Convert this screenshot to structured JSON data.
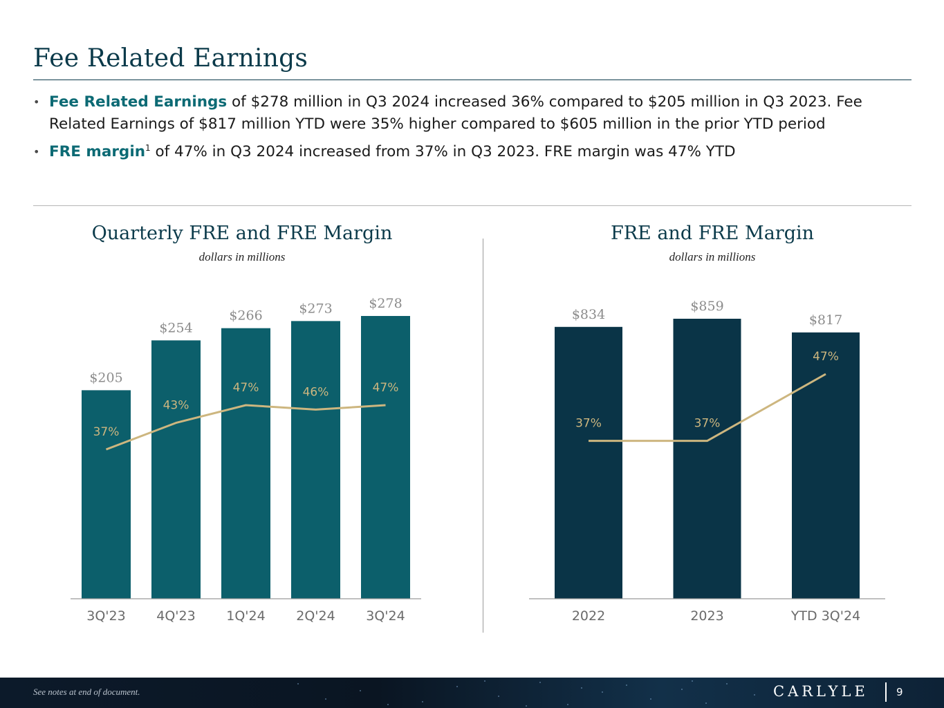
{
  "header": {
    "title": "Fee Related Earnings"
  },
  "bullets": [
    {
      "highlight": "Fee Related Earnings",
      "text": " of $278 million in Q3 2024 increased 36% compared to $205 million in Q3 2023. Fee Related Earnings of $817 million YTD were 35% higher compared to $605 million in the prior YTD period",
      "sup": ""
    },
    {
      "highlight": "FRE margin",
      "sup": "1",
      "text": " of 47% in Q3 2024 increased from 37% in Q3 2023. FRE margin was 47% YTD"
    }
  ],
  "colors": {
    "title": "#0b3a4a",
    "highlight": "#0c6a74",
    "bar_quarterly": "#0c5f6b",
    "bar_annual": "#0a3447",
    "line": "#cdb67f",
    "line_label": "#cdb67f",
    "value_label": "#8c8c8c",
    "axis": "#9a9a9a"
  },
  "chart_data": [
    {
      "type": "bar",
      "title": "Quarterly FRE and FRE Margin",
      "subtitle": "dollars in millions",
      "categories": [
        "3Q'23",
        "4Q'23",
        "1Q'24",
        "2Q'24",
        "3Q'24"
      ],
      "series": [
        {
          "name": "FRE",
          "type": "bar",
          "values": [
            205,
            254,
            266,
            273,
            278
          ],
          "labels": [
            "$205",
            "$254",
            "$266",
            "$273",
            "$278"
          ]
        },
        {
          "name": "FRE Margin",
          "type": "line",
          "values": [
            37,
            43,
            47,
            46,
            47
          ],
          "labels": [
            "37%",
            "43%",
            "47%",
            "46%",
            "47%"
          ]
        }
      ],
      "ylim": [
        0,
        278
      ],
      "margin_scale": [
        27,
        47
      ],
      "xlabel": "",
      "ylabel": ""
    },
    {
      "type": "bar",
      "title": "FRE and FRE Margin",
      "subtitle": "dollars in millions",
      "categories": [
        "2022",
        "2023",
        "YTD 3Q'24"
      ],
      "series": [
        {
          "name": "FRE",
          "type": "bar",
          "values": [
            834,
            859,
            817
          ],
          "labels": [
            "$834",
            "$859",
            "$817"
          ]
        },
        {
          "name": "FRE Margin",
          "type": "line",
          "values": [
            37,
            37,
            47
          ],
          "labels": [
            "37%",
            "37%",
            "47%"
          ]
        }
      ],
      "ylim": [
        0,
        859
      ],
      "margin_scale": [
        32,
        47
      ],
      "xlabel": "",
      "ylabel": ""
    }
  ],
  "footer": {
    "note": "See notes at end of document.",
    "logo": "CARLYLE",
    "page": "9"
  }
}
